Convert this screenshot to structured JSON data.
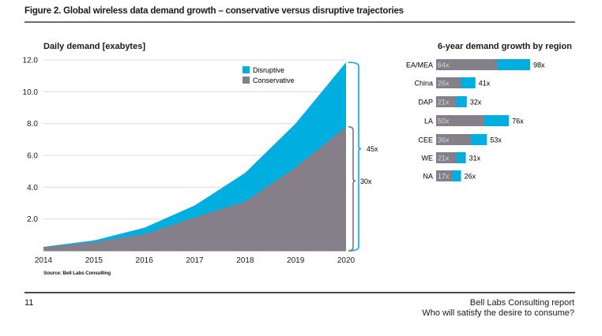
{
  "figure_title": "Figure 2. Global wireless data demand growth – conservative versus disruptive trajectories",
  "source": "Source: Bell Labs Consulting",
  "footer": {
    "page_number": "11",
    "line1": "Bell Labs Consulting report",
    "line2": "Who will satisfy the desire to consume?"
  },
  "colors": {
    "disruptive": "#00aee0",
    "conservative": "#857f8a",
    "grid": "#e3e3e3",
    "brace_disruptive": "#00aee0",
    "brace_conservative": "#7a7480"
  },
  "chart_data": [
    {
      "type": "area",
      "title": "Daily demand [exabytes]",
      "xlabel": "",
      "ylabel": "Daily demand [exabytes]",
      "x": [
        "2014",
        "2015",
        "2016",
        "2017",
        "2018",
        "2019",
        "2020"
      ],
      "series": [
        {
          "name": "Disruptive",
          "values": [
            0.25,
            0.65,
            1.45,
            2.85,
            4.9,
            8.0,
            11.85
          ]
        },
        {
          "name": "Conservative",
          "values": [
            0.22,
            0.55,
            1.05,
            2.1,
            3.1,
            5.25,
            7.8
          ]
        }
      ],
      "ylim": [
        0,
        12
      ],
      "yticks": [
        "2.0",
        "4.0",
        "6.0",
        "8.0",
        "10.0",
        "12.0"
      ],
      "ytick_values": [
        2,
        4,
        6,
        8,
        10,
        12
      ],
      "grid": true,
      "legend": [
        "Disruptive",
        "Conservative"
      ],
      "legend_placement": "top-right",
      "annotations": [
        {
          "text": "45x",
          "series": "Disruptive"
        },
        {
          "text": "30x",
          "series": "Conservative"
        }
      ]
    },
    {
      "type": "bar",
      "orientation": "horizontal",
      "title": "6-year demand growth by region",
      "categories": [
        "EA/MEA",
        "China",
        "DAP",
        "LA",
        "CEE",
        "WE",
        "NA"
      ],
      "series": [
        {
          "name": "Conservative",
          "values": [
            64,
            26,
            21,
            50,
            36,
            21,
            17
          ],
          "labels": [
            "64x",
            "26x",
            "21x",
            "50x",
            "36x",
            "21x",
            "17x"
          ]
        },
        {
          "name": "Disruptive",
          "values": [
            98,
            41,
            32,
            76,
            53,
            31,
            26
          ],
          "labels": [
            "98x",
            "41x",
            "32x",
            "76x",
            "53x",
            "31x",
            "26x"
          ]
        }
      ],
      "xlim": [
        0,
        98
      ]
    }
  ]
}
